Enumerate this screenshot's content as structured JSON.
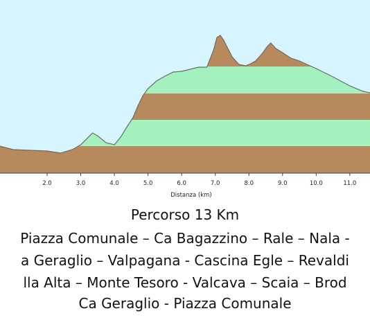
{
  "chart_data": {
    "type": "area",
    "xlabel": "Distanza (km)",
    "ylabel": "",
    "xlim": [
      0.6,
      11.6
    ],
    "x_ticks": [
      "2.0",
      "3.0",
      "4.0",
      "5.0",
      "6.0",
      "7.0",
      "8.0",
      "9.0",
      "10.0",
      "11.0"
    ],
    "grid": false,
    "colors": {
      "sky": "#d6f5ff",
      "band_brown": "#b78a5e",
      "band_green": "#a5f0bf",
      "outline": "#6a6a6a",
      "axis": "#404040"
    },
    "series": [
      {
        "x": [
          0.6,
          0.75,
          1.0,
          1.5,
          2.0,
          2.4,
          2.75,
          3.0,
          3.25,
          3.35,
          3.5,
          3.75,
          4.0,
          4.2,
          4.35,
          4.55,
          4.7,
          4.85,
          5.0,
          5.25,
          5.5,
          5.75,
          6.0,
          6.25,
          6.5,
          6.75,
          6.95,
          7.05,
          7.15,
          7.25,
          7.5,
          7.7,
          7.9,
          8.05,
          8.2,
          8.4,
          8.55,
          8.65,
          8.8,
          9.0,
          9.25,
          9.5,
          10.0,
          10.5,
          11.0,
          11.4,
          11.6
        ],
        "values": [
          211,
          213,
          216,
          217,
          218,
          221,
          216,
          209,
          197,
          192,
          196,
          206,
          209,
          197,
          185,
          170,
          153,
          138,
          128,
          117,
          110,
          104,
          103,
          100,
          97,
          97,
          72,
          54,
          51,
          58,
          82,
          93,
          95,
          92,
          88,
          77,
          67,
          62,
          70,
          76,
          84,
          88,
          99,
          111,
          124,
          132,
          134
        ]
      }
    ]
  },
  "caption": {
    "title": "Percorso 13 Km",
    "lines": [
      "Piazza Comunale – Ca Bagazzino – Rale – Nala -",
      "a Geraglio – Valpagana - Cascina Egle – Revaldi",
      "lla Alta – Monte Tesoro - Valcava – Scaia – Brod",
      "Ca Geraglio - Piazza Comunale"
    ]
  }
}
